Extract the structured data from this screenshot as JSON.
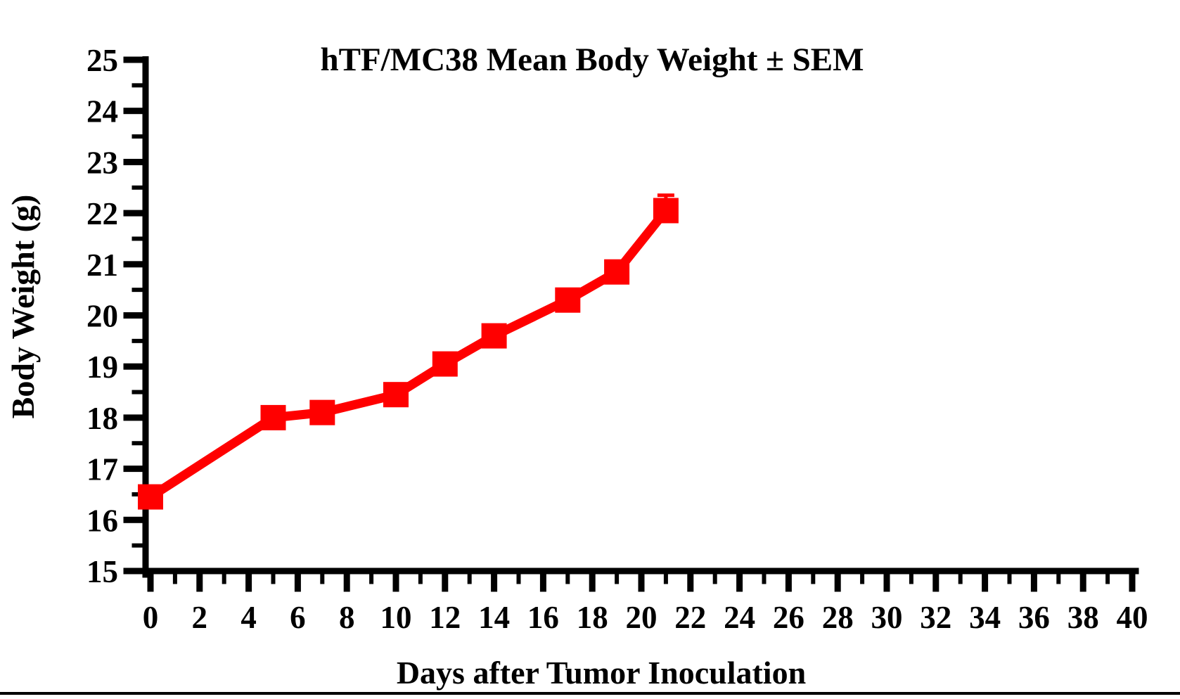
{
  "page": {
    "background_color": "#ffffff",
    "text_color": "#000000",
    "accent_color": "#ff0000"
  },
  "chart_data": {
    "type": "line",
    "title": "hTF/MC38 Mean Body Weight ± SEM",
    "grid": false,
    "legend": "none",
    "x_axis": {
      "label": "Days after Tumor Inoculation",
      "min": 0,
      "max": 40,
      "major_tick_step": 2,
      "minor_tick_step": 1,
      "tick_labels": [
        "0",
        "2",
        "4",
        "6",
        "8",
        "10",
        "12",
        "14",
        "16",
        "18",
        "20",
        "22",
        "24",
        "26",
        "28",
        "30",
        "32",
        "34",
        "36",
        "38",
        "40"
      ]
    },
    "y_axis": {
      "label": "Body Weight (g)",
      "min": 15,
      "max": 25,
      "major_tick_step": 1,
      "minor_tick_step": 0.5,
      "tick_labels": [
        "15",
        "16",
        "17",
        "18",
        "19",
        "20",
        "21",
        "22",
        "23",
        "24",
        "25"
      ]
    },
    "x": [
      0,
      5,
      7,
      10,
      12,
      14,
      17,
      19,
      21
    ],
    "series": [
      {
        "name": "hTF/MC38 mean body weight",
        "values": [
          16.45,
          18.0,
          18.1,
          18.45,
          19.05,
          19.6,
          20.3,
          20.85,
          22.05
        ],
        "sem_upper": [
          0,
          0,
          0,
          0,
          0,
          0,
          0,
          0,
          0.3
        ],
        "color": "#ff0000",
        "marker": "square"
      }
    ]
  }
}
